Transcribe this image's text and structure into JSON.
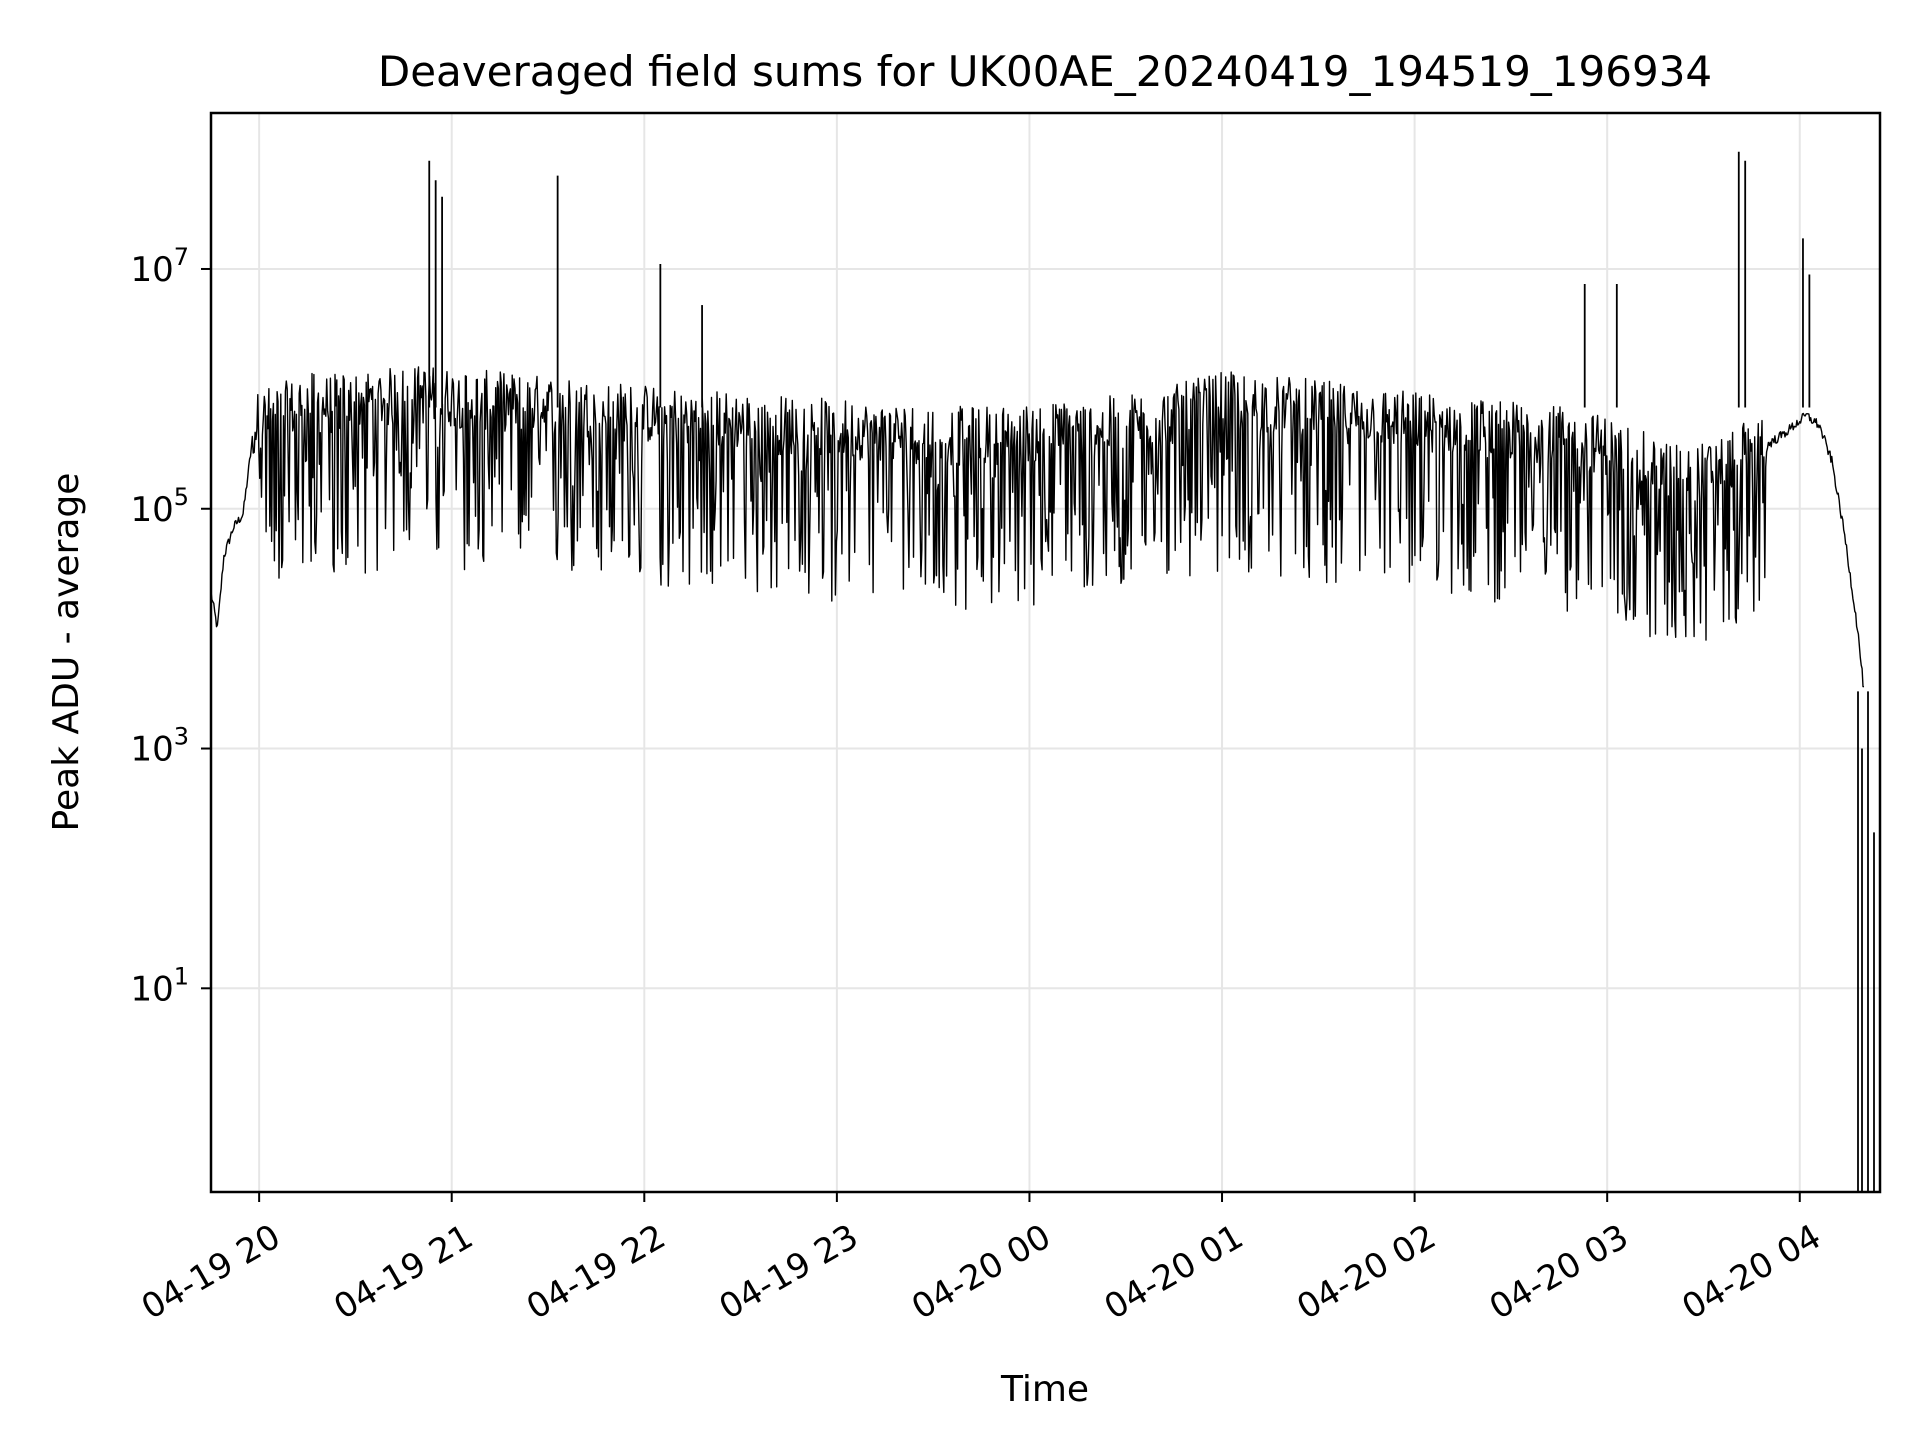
{
  "chart_data": {
    "type": "line",
    "title": "Deaveraged field sums for UK00AE_20240419_194519_196934",
    "xlabel": "Time",
    "ylabel": "Peak ADU - average",
    "yscale": "log",
    "grid": true,
    "line_color": "#000000",
    "grid_color": "#e6e6e6",
    "xlim": [
      "2024-04-19 19:45",
      "2024-04-20 04:25"
    ],
    "ylim": [
      0.2,
      200000000
    ],
    "x_ticks": [
      {
        "label": "04-19 20",
        "time": "2024-04-19 20:00"
      },
      {
        "label": "04-19 21",
        "time": "2024-04-19 21:00"
      },
      {
        "label": "04-19 22",
        "time": "2024-04-19 22:00"
      },
      {
        "label": "04-19 23",
        "time": "2024-04-19 23:00"
      },
      {
        "label": "04-20 00",
        "time": "2024-04-20 00:00"
      },
      {
        "label": "04-20 01",
        "time": "2024-04-20 01:00"
      },
      {
        "label": "04-20 02",
        "time": "2024-04-20 02:00"
      },
      {
        "label": "04-20 03",
        "time": "2024-04-20 03:00"
      },
      {
        "label": "04-20 04",
        "time": "2024-04-20 04:00"
      }
    ],
    "y_ticks": [
      {
        "base": "10",
        "exp": "1",
        "value": 10
      },
      {
        "base": "10",
        "exp": "3",
        "value": 1000
      },
      {
        "base": "10",
        "exp": "5",
        "value": 100000
      },
      {
        "base": "10",
        "exp": "7",
        "value": 10000000
      }
    ],
    "series": [
      {
        "x": [
          "2024-04-19 19:45",
          "2024-04-19 19:47",
          "2024-04-19 19:49",
          "2024-04-19 19:52",
          "2024-04-19 19:55",
          "2024-04-19 19:58",
          "2024-04-19 20:00",
          "2024-04-19 20:05",
          "2024-04-19 20:10",
          "2024-04-19 20:15",
          "2024-04-19 20:20",
          "2024-04-19 20:30",
          "2024-04-19 20:40",
          "2024-04-19 20:50",
          "2024-04-19 21:00",
          "2024-04-19 21:15",
          "2024-04-19 21:30",
          "2024-04-19 21:45",
          "2024-04-19 22:00",
          "2024-04-19 22:20",
          "2024-04-19 22:40",
          "2024-04-19 23:00",
          "2024-04-19 23:20",
          "2024-04-19 23:40",
          "2024-04-20 00:00",
          "2024-04-20 00:20",
          "2024-04-20 00:40",
          "2024-04-20 01:00",
          "2024-04-20 01:20",
          "2024-04-20 01:40",
          "2024-04-20 02:00",
          "2024-04-20 02:20",
          "2024-04-20 02:40",
          "2024-04-20 03:00",
          "2024-04-20 03:15",
          "2024-04-20 03:30",
          "2024-04-20 03:45",
          "2024-04-20 03:55",
          "2024-04-20 04:02",
          "2024-04-20 04:06",
          "2024-04-20 04:10",
          "2024-04-20 04:14",
          "2024-04-20 04:18",
          "2024-04-20 04:20"
        ],
        "y": [
          20000,
          10000,
          40000,
          70000,
          90000,
          400000,
          500000,
          550000,
          600000,
          700000,
          650000,
          700000,
          750000,
          800000,
          750000,
          700000,
          650000,
          600000,
          550000,
          500000,
          450000,
          420000,
          380000,
          360000,
          380000,
          420000,
          500000,
          700000,
          650000,
          550000,
          480000,
          420000,
          380000,
          300000,
          200000,
          180000,
          280000,
          420000,
          600000,
          500000,
          250000,
          60000,
          10000,
          3000
        ]
      }
    ],
    "spikes": [
      {
        "time": "2024-04-19 20:53",
        "value": 80000000
      },
      {
        "time": "2024-04-19 20:55",
        "value": 55000000
      },
      {
        "time": "2024-04-19 20:57",
        "value": 40000000
      },
      {
        "time": "2024-04-19 21:33",
        "value": 60000000
      },
      {
        "time": "2024-04-19 22:05",
        "value": 11000000
      },
      {
        "time": "2024-04-19 22:18",
        "value": 5000000
      },
      {
        "time": "2024-04-20 02:53",
        "value": 7500000
      },
      {
        "time": "2024-04-20 03:03",
        "value": 7500000
      },
      {
        "time": "2024-04-20 03:41",
        "value": 95000000
      },
      {
        "time": "2024-04-20 03:43",
        "value": 80000000
      },
      {
        "time": "2024-04-20 04:01",
        "value": 18000000
      },
      {
        "time": "2024-04-20 04:03",
        "value": 9000000
      }
    ]
  }
}
